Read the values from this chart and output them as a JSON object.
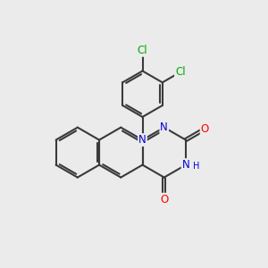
{
  "bg_color": "#ebebeb",
  "bond_color": "#3a3a3a",
  "bond_width": 1.5,
  "atom_colors": {
    "N": "#0000dd",
    "O": "#ff0000",
    "Cl": "#00aa00",
    "C": "#3a3a3a"
  },
  "font_size_atom": 8.5,
  "BL": 0.95
}
